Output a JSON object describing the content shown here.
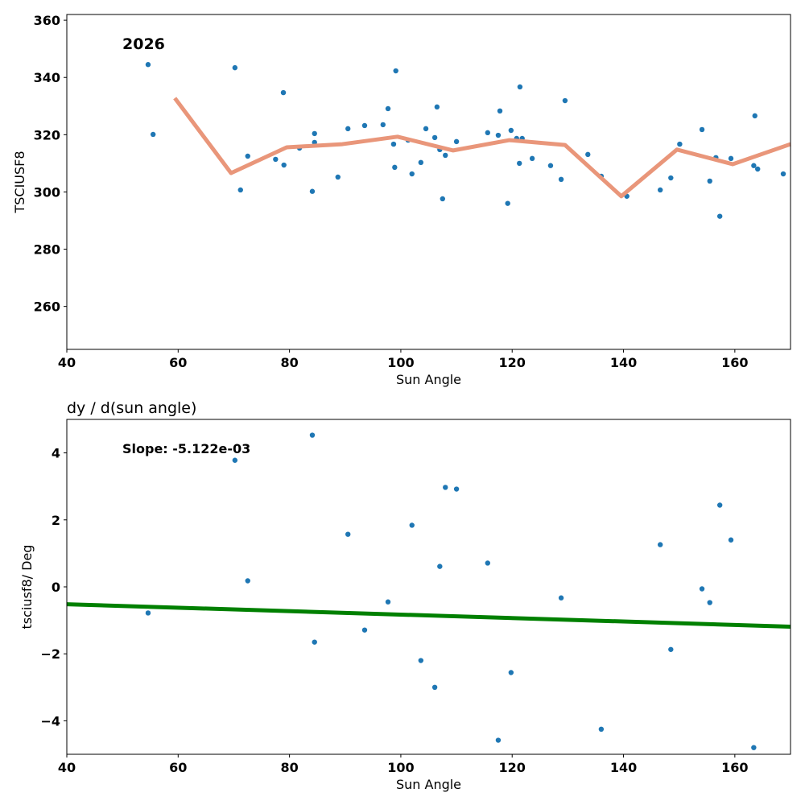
{
  "chart_data": [
    {
      "type": "scatter",
      "annotation": "2026",
      "xlabel": "Sun Angle",
      "ylabel": "TSCIUSF8",
      "xlim": [
        40,
        170
      ],
      "ylim": [
        245,
        362
      ],
      "xticks": [
        40,
        60,
        80,
        100,
        120,
        140,
        160
      ],
      "yticks": [
        260,
        280,
        300,
        320,
        340,
        360
      ],
      "colors": {
        "points": "#1f77b4",
        "line": "#e9967a"
      },
      "points": [
        [
          54.6,
          344.5
        ],
        [
          55.5,
          320.1
        ],
        [
          70.2,
          343.4
        ],
        [
          71.2,
          300.7
        ],
        [
          72.5,
          312.5
        ],
        [
          77.5,
          311.4
        ],
        [
          78.9,
          334.7
        ],
        [
          79.0,
          309.4
        ],
        [
          81.8,
          315.3
        ],
        [
          84.1,
          300.2
        ],
        [
          84.5,
          320.4
        ],
        [
          84.5,
          317.3
        ],
        [
          88.7,
          305.2
        ],
        [
          90.5,
          322.1
        ],
        [
          93.5,
          323.2
        ],
        [
          96.8,
          323.5
        ],
        [
          97.7,
          329.1
        ],
        [
          98.7,
          316.7
        ],
        [
          98.9,
          308.6
        ],
        [
          99.1,
          342.3
        ],
        [
          101.3,
          318.1
        ],
        [
          102.0,
          306.3
        ],
        [
          103.6,
          310.3
        ],
        [
          104.5,
          322.1
        ],
        [
          106.1,
          319.0
        ],
        [
          106.5,
          329.7
        ],
        [
          107.0,
          314.8
        ],
        [
          107.5,
          297.6
        ],
        [
          108.0,
          312.8
        ],
        [
          110.0,
          317.6
        ],
        [
          115.6,
          320.7
        ],
        [
          117.5,
          319.8
        ],
        [
          117.8,
          328.3
        ],
        [
          119.2,
          296.0
        ],
        [
          119.8,
          321.5
        ],
        [
          120.8,
          318.7
        ],
        [
          121.3,
          310.0
        ],
        [
          121.4,
          336.7
        ],
        [
          121.8,
          318.7
        ],
        [
          123.6,
          311.7
        ],
        [
          126.9,
          309.2
        ],
        [
          128.8,
          304.4
        ],
        [
          129.5,
          331.9
        ],
        [
          133.6,
          313.1
        ],
        [
          136.0,
          305.5
        ],
        [
          140.6,
          298.5
        ],
        [
          146.6,
          300.7
        ],
        [
          148.5,
          304.9
        ],
        [
          150.1,
          316.7
        ],
        [
          154.1,
          321.8
        ],
        [
          155.5,
          303.8
        ],
        [
          156.6,
          312.0
        ],
        [
          157.3,
          291.5
        ],
        [
          159.3,
          311.7
        ],
        [
          163.4,
          309.2
        ],
        [
          163.6,
          326.6
        ],
        [
          164.1,
          308.0
        ],
        [
          168.7,
          306.3
        ]
      ],
      "line": [
        [
          59.4,
          332.8
        ],
        [
          69.5,
          306.6
        ],
        [
          79.5,
          315.6
        ],
        [
          89.5,
          316.7
        ],
        [
          99.4,
          319.3
        ],
        [
          109.4,
          314.5
        ],
        [
          119.5,
          318.1
        ],
        [
          129.5,
          316.4
        ],
        [
          139.6,
          298.5
        ],
        [
          149.6,
          314.8
        ],
        [
          159.6,
          309.7
        ],
        [
          170,
          316.7
        ]
      ]
    },
    {
      "type": "scatter",
      "title": "dy / d(sun angle)",
      "annotation": "Slope: -5.122e-03",
      "xlabel": "Sun Angle",
      "ylabel": "tsciusf8/ Deg",
      "xlim": [
        40,
        170
      ],
      "ylim": [
        -5,
        5
      ],
      "xticks": [
        40,
        60,
        80,
        100,
        120,
        140,
        160
      ],
      "yticks": [
        -4,
        -2,
        0,
        2,
        4
      ],
      "colors": {
        "points": "#1f77b4",
        "line": "#008000"
      },
      "points": [
        [
          54.6,
          -0.78
        ],
        [
          70.2,
          3.78
        ],
        [
          72.5,
          0.18
        ],
        [
          84.1,
          4.53
        ],
        [
          84.5,
          -1.65
        ],
        [
          90.5,
          1.57
        ],
        [
          93.5,
          -1.29
        ],
        [
          97.7,
          -0.45
        ],
        [
          102.0,
          1.84
        ],
        [
          103.6,
          -2.2
        ],
        [
          106.1,
          -3.0
        ],
        [
          107.0,
          0.61
        ],
        [
          108.0,
          2.97
        ],
        [
          110.0,
          2.92
        ],
        [
          115.6,
          0.71
        ],
        [
          117.5,
          -4.58
        ],
        [
          119.8,
          -2.56
        ],
        [
          128.8,
          -0.33
        ],
        [
          136.0,
          -4.25
        ],
        [
          146.6,
          1.26
        ],
        [
          148.5,
          -1.87
        ],
        [
          154.1,
          -0.06
        ],
        [
          155.5,
          -0.47
        ],
        [
          157.3,
          2.44
        ],
        [
          159.3,
          1.4
        ],
        [
          163.4,
          -4.8
        ]
      ],
      "line": [
        [
          40,
          -0.52
        ],
        [
          170,
          -1.19
        ]
      ]
    }
  ]
}
